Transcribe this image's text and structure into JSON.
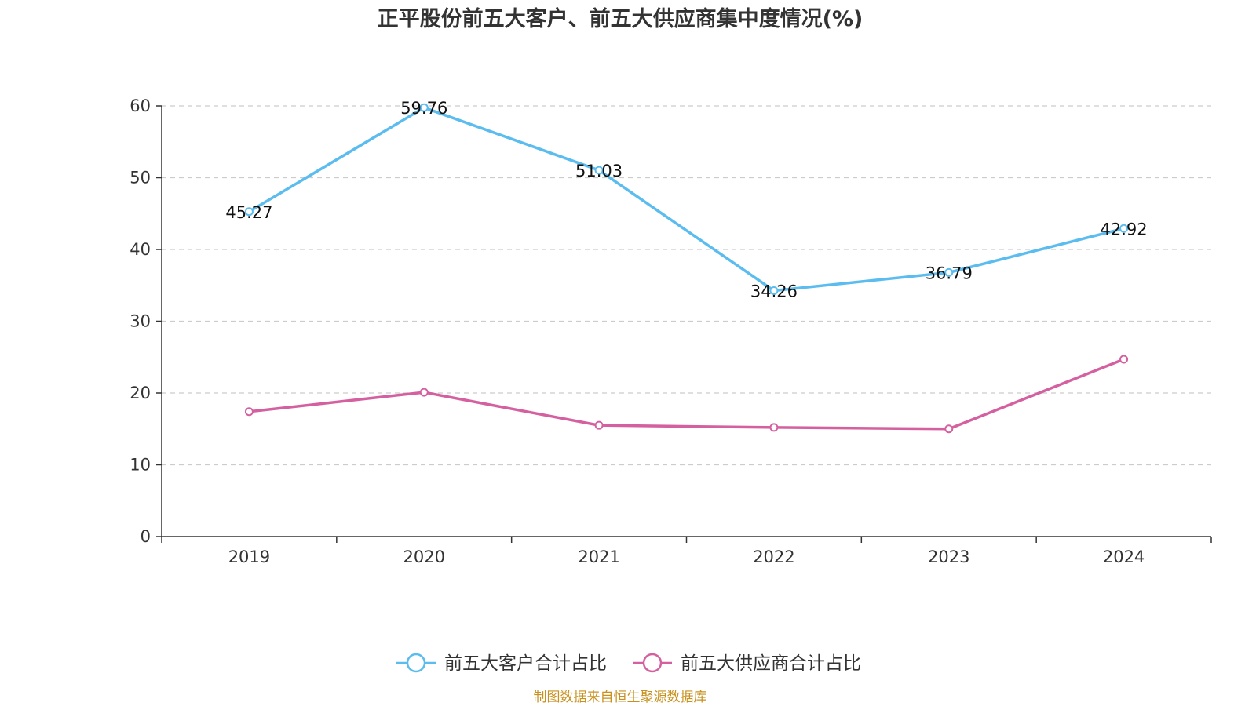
{
  "chart_data": {
    "type": "line",
    "title": "正平股份前五大客户、前五大供应商集中度情况(%)",
    "categories": [
      "2019",
      "2020",
      "2021",
      "2022",
      "2023",
      "2024"
    ],
    "ylim": [
      0,
      60
    ],
    "yticks": [
      0,
      10,
      20,
      30,
      40,
      50,
      60
    ],
    "grid": true,
    "legend_position": "bottom-center",
    "series": [
      {
        "name": "前五大客户合计占比",
        "color": "#5bbcef",
        "values": [
          45.27,
          59.76,
          51.03,
          34.26,
          36.79,
          42.92
        ],
        "labels": [
          "45.27",
          "59.76",
          "51.03",
          "34.26",
          "36.79",
          "42.92"
        ]
      },
      {
        "name": "前五大供应商合计占比",
        "color": "#d4609f",
        "values": [
          17.4,
          20.1,
          15.5,
          15.2,
          15.0,
          24.7
        ]
      }
    ]
  },
  "source": "制图数据来自恒生聚源数据库"
}
